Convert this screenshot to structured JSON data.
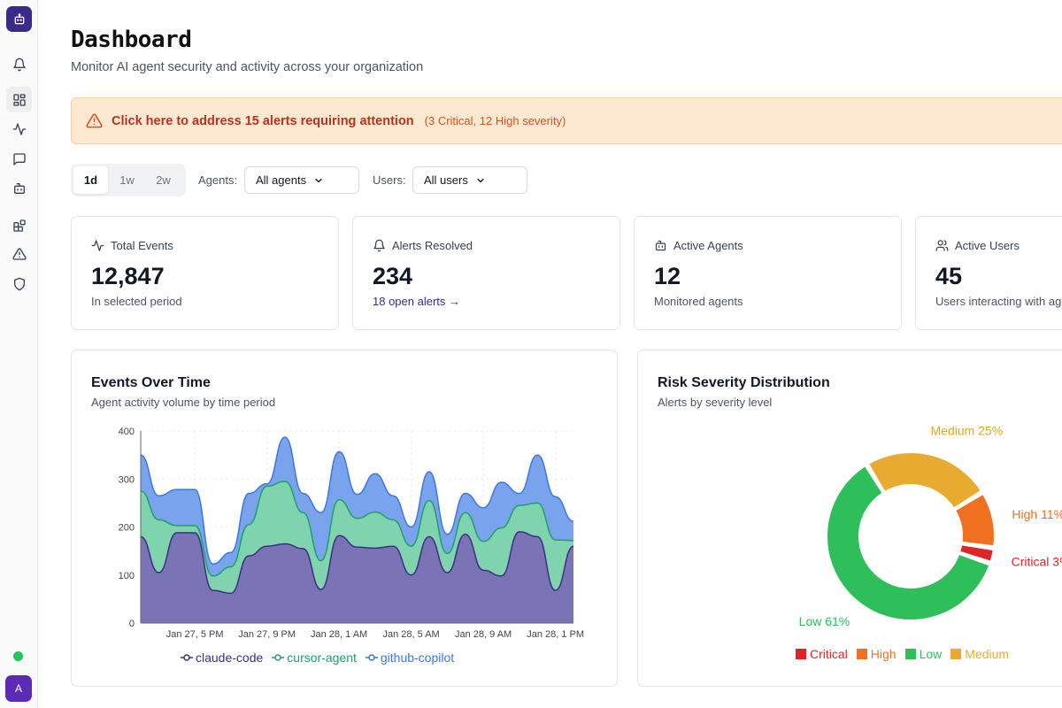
{
  "header": {
    "title": "Dashboard",
    "subtitle": "Monitor AI agent security and activity across your organization"
  },
  "alert_banner": {
    "main": "Click here to address 15 alerts requiring attention",
    "detail": "(3 Critical, 12 High severity)"
  },
  "filters": {
    "ranges": [
      "1d",
      "1w",
      "2w"
    ],
    "selected_range": "1d",
    "agents_label": "Agents:",
    "agents_value": "All agents",
    "users_label": "Users:",
    "users_value": "All users"
  },
  "stats": [
    {
      "label": "Total Events",
      "value": "12,847",
      "note": "In selected period",
      "icon": "activity-icon"
    },
    {
      "label": "Alerts Resolved",
      "value": "234",
      "note": "18 open alerts →",
      "icon": "bell-icon"
    },
    {
      "label": "Active Agents",
      "value": "12",
      "note": "Monitored agents",
      "icon": "bot-icon"
    },
    {
      "label": "Active Users",
      "value": "45",
      "note": "Users interacting with agents",
      "icon": "users-icon"
    }
  ],
  "events_chart": {
    "title": "Events Over Time",
    "subtitle": "Agent activity volume by time period"
  },
  "risk_chart": {
    "title": "Risk Severity Distribution",
    "subtitle": "Alerts by severity level"
  },
  "colors": {
    "accent": "#3b2a8c",
    "claude": "#7b74b4",
    "cursor": "#7fd3ad",
    "copilot": "#7aa3ee",
    "critical": "#dc2626",
    "high": "#f07020",
    "low": "#2fbf5a",
    "medium": "#e8ab2f"
  },
  "chart_data": [
    {
      "type": "area",
      "stacked": true,
      "title": "Events Over Time",
      "subtitle": "Agent activity volume by time period",
      "ylim": [
        0,
        400
      ],
      "yticks": [
        0,
        100,
        200,
        300,
        400
      ],
      "x": [
        0,
        1,
        2,
        3,
        4,
        5,
        6,
        7,
        8,
        9,
        10,
        11,
        12,
        13,
        14,
        15,
        16,
        17,
        18,
        19,
        20,
        21,
        22,
        23,
        24
      ],
      "xticks": [
        {
          "at": 3,
          "label": "Jan 27, 5 PM"
        },
        {
          "at": 7,
          "label": "Jan 27, 9 PM"
        },
        {
          "at": 11,
          "label": "Jan 28, 1 AM"
        },
        {
          "at": 15,
          "label": "Jan 28, 5 AM"
        },
        {
          "at": 19,
          "label": "Jan 28, 9 AM"
        },
        {
          "at": 23,
          "label": "Jan 28, 1 PM"
        }
      ],
      "series": [
        {
          "name": "claude-code",
          "values": [
            180,
            105,
            188,
            188,
            68,
            62,
            140,
            160,
            165,
            155,
            70,
            182,
            158,
            156,
            160,
            100,
            180,
            105,
            185,
            110,
            98,
            190,
            180,
            68,
            160
          ]
        },
        {
          "name": "cursor-agent",
          "values": [
            95,
            110,
            15,
            15,
            30,
            55,
            65,
            125,
            130,
            75,
            60,
            75,
            60,
            75,
            55,
            60,
            75,
            40,
            45,
            60,
            100,
            55,
            70,
            105,
            12
          ]
        },
        {
          "name": "github-copilot",
          "values": [
            75,
            50,
            75,
            75,
            25,
            30,
            65,
            5,
            92,
            40,
            100,
            100,
            50,
            80,
            50,
            40,
            60,
            40,
            40,
            70,
            95,
            25,
            100,
            90,
            40
          ]
        }
      ]
    },
    {
      "type": "pie",
      "donut": true,
      "title": "Risk Severity Distribution",
      "subtitle": "Alerts by severity level",
      "slices": [
        {
          "name": "Critical",
          "value": 3,
          "label": "Critical 3%"
        },
        {
          "name": "Low",
          "value": 61,
          "label": "Low 61%"
        },
        {
          "name": "Medium",
          "value": 25,
          "label": "Medium 25%"
        },
        {
          "name": "High",
          "value": 11,
          "label": "High 11%"
        }
      ],
      "legend": [
        "Critical",
        "High",
        "Low",
        "Medium"
      ]
    }
  ]
}
